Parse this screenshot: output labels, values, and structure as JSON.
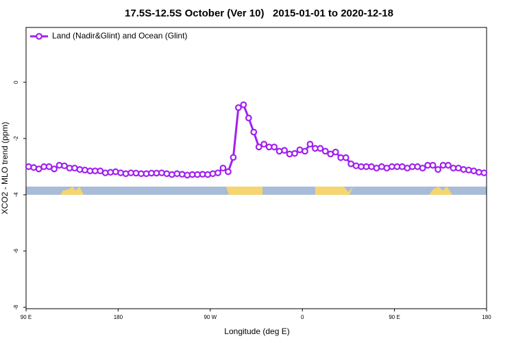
{
  "chart_data": {
    "type": "line",
    "title": "17.5S-12.5S October (Ver 10)   2015-01-01 to 2020-12-18",
    "x_label": "Longitude (deg E)",
    "y_label": "XCO2 - MLO trend (ppm)",
    "xlim": [
      90,
      540
    ],
    "xticks": [
      {
        "value": 90,
        "label": "90 E"
      },
      180,
      {
        "value": 270,
        "label": "90 W"
      },
      {
        "value": 360,
        "label": "0"
      },
      {
        "value": 450,
        "label": "90 E"
      },
      {
        "value": 540,
        "label": "180"
      }
    ],
    "ylim": [
      -8.05,
      1.95
    ],
    "yticks": [
      0,
      -2,
      -4,
      -6,
      -8
    ],
    "legend": "top-left",
    "x": [
      92.5,
      97.5,
      102.5,
      107.5,
      112.5,
      117.5,
      122.5,
      127.5,
      132.5,
      137.5,
      142.5,
      147.5,
      152.5,
      157.5,
      162.5,
      167.5,
      172.5,
      177.5,
      182.5,
      187.5,
      192.5,
      197.5,
      202.5,
      207.5,
      212.5,
      217.5,
      222.5,
      227.5,
      232.5,
      237.5,
      242.5,
      247.5,
      252.5,
      257.5,
      262.5,
      267.5,
      272.5,
      277.5,
      282.5,
      287.5,
      292.5,
      297.5,
      302.5,
      307.5,
      312.5,
      317.5,
      322.5,
      327.5,
      332.5,
      337.5,
      342.5,
      347.5,
      352.5,
      357.5,
      362.5,
      367.5,
      372.5,
      377.5,
      382.5,
      387.5,
      392.5,
      397.5,
      402.5,
      407.5,
      412.5,
      417.5,
      422.5,
      427.5,
      432.5,
      437.5,
      442.5,
      447.5,
      452.5,
      457.5,
      462.5,
      467.5,
      472.5,
      477.5,
      482.5,
      487.5,
      492.5,
      497.5,
      502.5,
      507.5,
      512.5,
      517.5,
      522.5,
      527.5,
      532.5,
      537.5
    ],
    "series": [
      {
        "name": "Land (Nadir&Glint) and Ocean (Glint)",
        "color": "#a020f0",
        "values": [
          -3.0,
          -3.03,
          -3.08,
          -3.0,
          -3.0,
          -3.08,
          -2.95,
          -2.97,
          -3.05,
          -3.05,
          -3.1,
          -3.12,
          -3.15,
          -3.15,
          -3.15,
          -3.22,
          -3.2,
          -3.18,
          -3.22,
          -3.25,
          -3.22,
          -3.23,
          -3.25,
          -3.25,
          -3.23,
          -3.23,
          -3.22,
          -3.25,
          -3.28,
          -3.25,
          -3.27,
          -3.3,
          -3.28,
          -3.28,
          -3.27,
          -3.28,
          -3.25,
          -3.22,
          -3.05,
          -3.18,
          -2.67,
          -0.9,
          -0.8,
          -1.27,
          -1.77,
          -2.3,
          -2.2,
          -2.3,
          -2.3,
          -2.45,
          -2.42,
          -2.55,
          -2.53,
          -2.4,
          -2.45,
          -2.2,
          -2.35,
          -2.35,
          -2.45,
          -2.55,
          -2.48,
          -2.68,
          -2.68,
          -2.9,
          -2.97,
          -3.0,
          -3.0,
          -3.0,
          -3.05,
          -3.0,
          -3.05,
          -3.0,
          -3.0,
          -3.0,
          -3.05,
          -3.0,
          -3.0,
          -3.05,
          -2.95,
          -2.95,
          -3.1,
          -2.95,
          -2.95,
          -3.05,
          -3.05,
          -3.1,
          -3.12,
          -3.15,
          -3.2,
          -3.22
        ]
      }
    ]
  }
}
